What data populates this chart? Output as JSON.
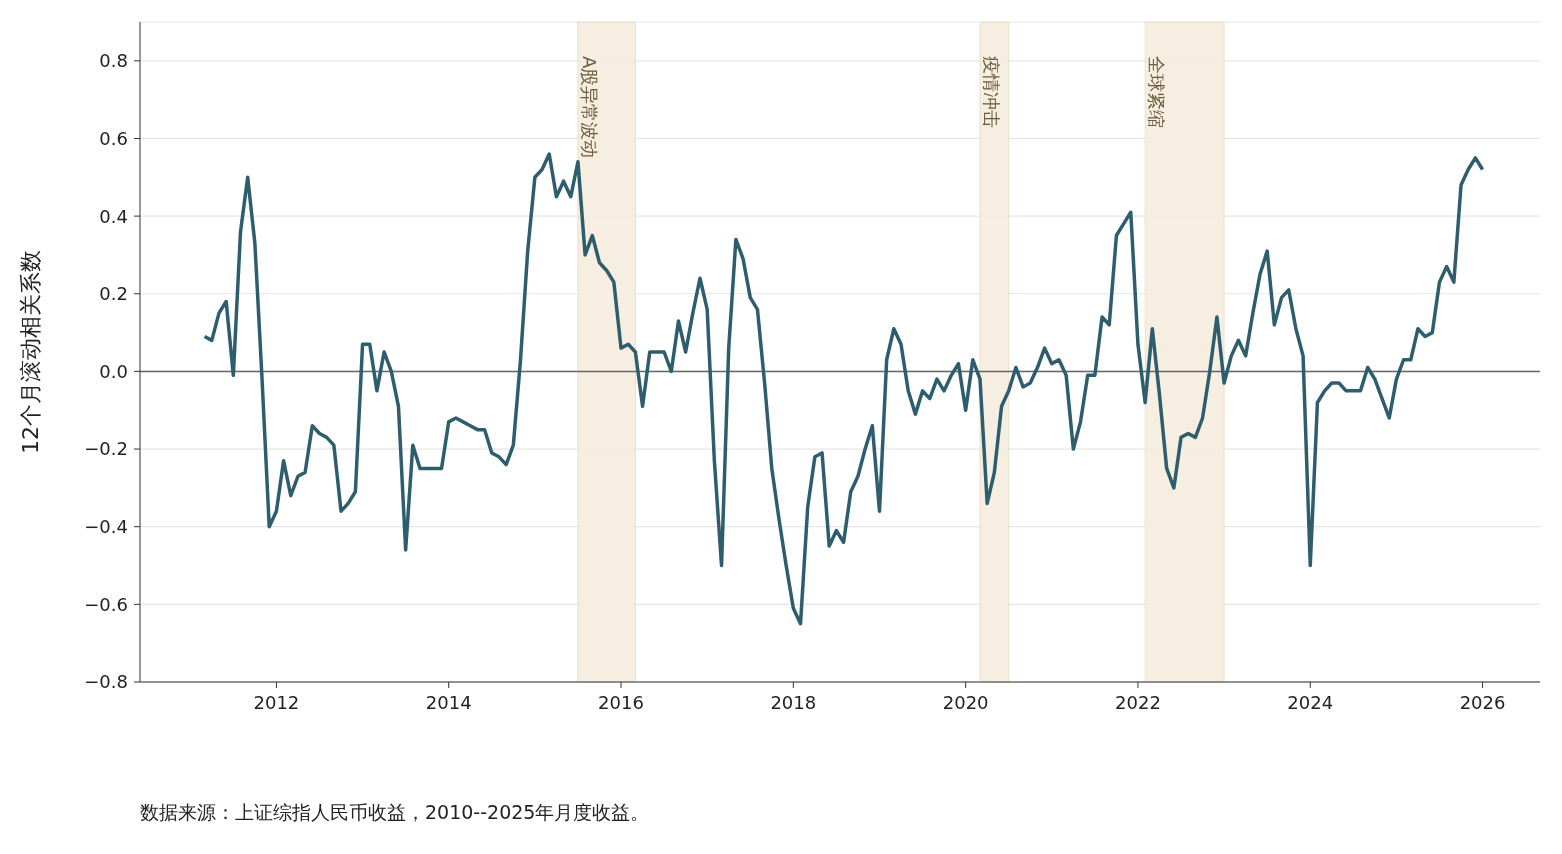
{
  "chart_data": {
    "type": "line",
    "ylabel": "12个月滚动相关系数",
    "x": [
      "2011-03",
      "2011-04",
      "2011-05",
      "2011-06",
      "2011-07",
      "2011-08",
      "2011-09",
      "2011-10",
      "2011-11",
      "2011-12",
      "2012-01",
      "2012-02",
      "2012-03",
      "2012-04",
      "2012-05",
      "2012-06",
      "2012-07",
      "2012-08",
      "2012-09",
      "2012-10",
      "2012-11",
      "2012-12",
      "2013-01",
      "2013-02",
      "2013-03",
      "2013-04",
      "2013-05",
      "2013-06",
      "2013-07",
      "2013-08",
      "2013-09",
      "2013-10",
      "2013-11",
      "2013-12",
      "2014-01",
      "2014-02",
      "2014-03",
      "2014-04",
      "2014-05",
      "2014-06",
      "2014-07",
      "2014-08",
      "2014-09",
      "2014-10",
      "2014-11",
      "2014-12",
      "2015-01",
      "2015-02",
      "2015-03",
      "2015-04",
      "2015-05",
      "2015-06",
      "2015-07",
      "2015-08",
      "2015-09",
      "2015-10",
      "2015-11",
      "2015-12",
      "2016-01",
      "2016-02",
      "2016-03",
      "2016-04",
      "2016-05",
      "2016-06",
      "2016-07",
      "2016-08",
      "2016-09",
      "2016-10",
      "2016-11",
      "2016-12",
      "2017-01",
      "2017-02",
      "2017-03",
      "2017-04",
      "2017-05",
      "2017-06",
      "2017-07",
      "2017-08",
      "2017-09",
      "2017-10",
      "2017-11",
      "2017-12",
      "2018-01",
      "2018-02",
      "2018-03",
      "2018-04",
      "2018-05",
      "2018-06",
      "2018-07",
      "2018-08",
      "2018-09",
      "2018-10",
      "2018-11",
      "2018-12",
      "2019-01",
      "2019-02",
      "2019-03",
      "2019-04",
      "2019-05",
      "2019-06",
      "2019-07",
      "2019-08",
      "2019-09",
      "2019-10",
      "2019-11",
      "2019-12",
      "2020-01",
      "2020-02",
      "2020-03",
      "2020-04",
      "2020-05",
      "2020-06",
      "2020-07",
      "2020-08",
      "2020-09",
      "2020-10",
      "2020-11",
      "2020-12",
      "2021-01",
      "2021-02",
      "2021-03",
      "2021-04",
      "2021-05",
      "2021-06",
      "2021-07",
      "2021-08",
      "2021-09",
      "2021-10",
      "2021-11",
      "2021-12",
      "2022-01",
      "2022-02",
      "2022-03",
      "2022-04",
      "2022-05",
      "2022-06",
      "2022-07",
      "2022-08",
      "2022-09",
      "2022-10",
      "2022-11",
      "2022-12",
      "2023-01",
      "2023-02",
      "2023-03",
      "2023-04",
      "2023-05",
      "2023-06",
      "2023-07",
      "2023-08",
      "2023-09",
      "2023-10",
      "2023-11",
      "2023-12",
      "2024-01",
      "2024-02",
      "2024-03",
      "2024-04",
      "2024-05",
      "2024-06",
      "2024-07",
      "2024-08",
      "2024-09",
      "2024-10",
      "2024-11",
      "2024-12",
      "2025-01",
      "2025-02",
      "2025-03",
      "2025-04",
      "2025-05",
      "2025-06",
      "2025-07",
      "2025-08",
      "2025-09",
      "2025-10",
      "2025-11",
      "2025-12",
      "2026-01"
    ],
    "series": [
      {
        "color": "#2e5e6e",
        "values": [
          0.09,
          0.08,
          0.15,
          0.18,
          -0.01,
          0.36,
          0.5,
          0.33,
          -0.02,
          -0.4,
          -0.36,
          -0.23,
          -0.32,
          -0.27,
          -0.26,
          -0.14,
          -0.16,
          -0.17,
          -0.19,
          -0.36,
          -0.34,
          -0.31,
          0.07,
          0.07,
          -0.05,
          0.05,
          0.0,
          -0.09,
          -0.46,
          -0.19,
          -0.25,
          -0.25,
          -0.25,
          -0.25,
          -0.13,
          -0.12,
          -0.13,
          -0.14,
          -0.15,
          -0.15,
          -0.21,
          -0.22,
          -0.24,
          -0.19,
          0.03,
          0.31,
          0.5,
          0.52,
          0.56,
          0.45,
          0.49,
          0.45,
          0.54,
          0.3,
          0.35,
          0.28,
          0.26,
          0.23,
          0.06,
          0.07,
          0.05,
          -0.09,
          0.05,
          0.05,
          0.05,
          0.0,
          0.13,
          0.05,
          0.15,
          0.24,
          0.16,
          -0.23,
          -0.5,
          0.06,
          0.34,
          0.29,
          0.19,
          0.16,
          -0.03,
          -0.25,
          -0.38,
          -0.5,
          -0.61,
          -0.65,
          -0.35,
          -0.22,
          -0.21,
          -0.45,
          -0.41,
          -0.44,
          -0.31,
          -0.27,
          -0.2,
          -0.14,
          -0.36,
          0.03,
          0.11,
          0.07,
          -0.05,
          -0.11,
          -0.05,
          -0.07,
          -0.02,
          -0.05,
          -0.01,
          0.02,
          -0.1,
          0.03,
          -0.02,
          -0.34,
          -0.26,
          -0.09,
          -0.05,
          0.01,
          -0.04,
          -0.03,
          0.01,
          0.06,
          0.02,
          0.03,
          -0.01,
          -0.2,
          -0.13,
          -0.01,
          -0.01,
          0.14,
          0.12,
          0.35,
          0.38,
          0.41,
          0.07,
          -0.08,
          0.11,
          -0.06,
          -0.25,
          -0.3,
          -0.17,
          -0.16,
          -0.17,
          -0.12,
          0.0,
          0.14,
          -0.03,
          0.04,
          0.08,
          0.04,
          0.15,
          0.25,
          0.31,
          0.12,
          0.19,
          0.21,
          0.11,
          0.04,
          -0.5,
          -0.08,
          -0.05,
          -0.03,
          -0.03,
          -0.05,
          -0.05,
          -0.05,
          0.01,
          -0.02,
          -0.07,
          -0.12,
          -0.02,
          0.03,
          0.03,
          0.11,
          0.09,
          0.1,
          0.23,
          0.27,
          0.23,
          0.48,
          0.52,
          0.55,
          0.52
        ]
      }
    ],
    "xlim": [
      "2010-06",
      "2026-09"
    ],
    "xticks": [
      "2012",
      "2014",
      "2016",
      "2018",
      "2020",
      "2022",
      "2024",
      "2026"
    ],
    "ylim": [
      -0.8,
      0.9
    ],
    "yticks": [
      {
        "value": -0.8,
        "label": "−0.8"
      },
      {
        "value": -0.6,
        "label": "−0.6"
      },
      {
        "value": -0.4,
        "label": "−0.4"
      },
      {
        "value": -0.2,
        "label": "−0.2"
      },
      {
        "value": 0,
        "label": "0.0"
      },
      0.2,
      0.4,
      0.6,
      0.8
    ],
    "grid": "y",
    "line_style": "solid",
    "ref_lines": [
      {
        "axis": "y",
        "value": 0,
        "color": "#666666"
      }
    ],
    "bands": [
      {
        "axis": "x",
        "from": "2015-07",
        "to": "2016-03",
        "label": "A股异常波动",
        "color": "#f5ecdd"
      },
      {
        "axis": "x",
        "from": "2020-03",
        "to": "2020-07",
        "label": "疫情冲击",
        "color": "#f5ecdd"
      },
      {
        "axis": "x",
        "from": "2022-02",
        "to": "2023-01",
        "label": "全球紧缩",
        "color": "#f5ecdd"
      }
    ],
    "annotations": [
      "数据来源：上证综指人民币收益，2010--2025年月度收益。"
    ]
  }
}
